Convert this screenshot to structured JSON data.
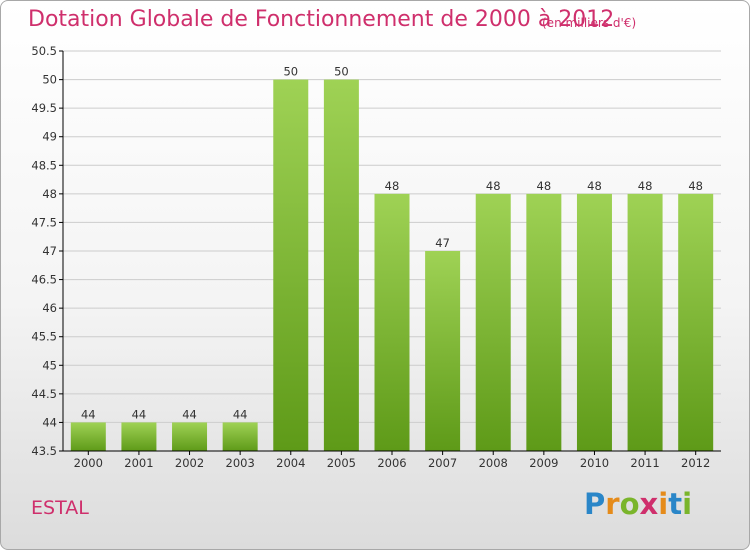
{
  "header": {
    "title": "Dotation Globale de Fonctionnement de 2000 à 2012",
    "unit": "(en milliers d'€)"
  },
  "footer": {
    "commune": "ESTAL",
    "logo": {
      "letters": [
        "P",
        "r",
        "o",
        "x",
        "i",
        "t",
        "i"
      ]
    }
  },
  "colors": {
    "title": "#cf2f6c",
    "bar_top": "#9fd255",
    "bar_bottom": "#5e9a18",
    "axis": "#000000",
    "grid": "#cccccc"
  },
  "chart_data": {
    "type": "bar",
    "title": "Dotation Globale de Fonctionnement de 2000 à 2012",
    "unit": "(en milliers d'€)",
    "xlabel": "",
    "ylabel": "",
    "categories": [
      "2000",
      "2001",
      "2002",
      "2003",
      "2004",
      "2005",
      "2006",
      "2007",
      "2008",
      "2009",
      "2010",
      "2011",
      "2012"
    ],
    "values": [
      44,
      44,
      44,
      44,
      50,
      50,
      48,
      47,
      48,
      48,
      48,
      48,
      48
    ],
    "data_labels": [
      "44",
      "44",
      "44",
      "44",
      "50",
      "50",
      "48",
      "47",
      "48",
      "48",
      "48",
      "48",
      "48"
    ],
    "ylim": [
      43.5,
      50.5
    ],
    "yticks": [
      43.5,
      44,
      44.5,
      45,
      45.5,
      46,
      46.5,
      47,
      47.5,
      48,
      48.5,
      49,
      49.5,
      50,
      50.5
    ],
    "ytick_labels": [
      "43.5",
      "44",
      "44.5",
      "45",
      "45.5",
      "46",
      "46.5",
      "47",
      "47.5",
      "48",
      "48.5",
      "49",
      "49.5",
      "50",
      "50.5"
    ],
    "grid": true
  }
}
